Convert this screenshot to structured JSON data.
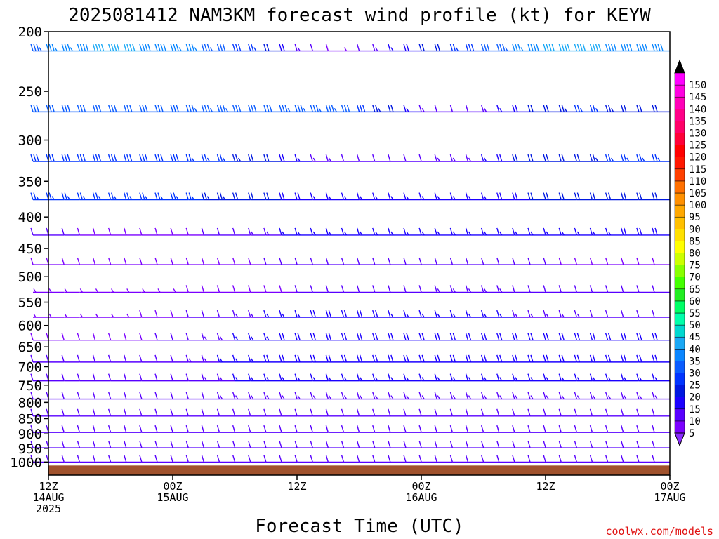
{
  "title": "2025081412 NAM3KM forecast wind profile (kt) for KEYW",
  "watermark": "coolwx.com/models",
  "chart_data": {
    "type": "wind-barb-profile",
    "xlabel": "Forecast Time (UTC)",
    "ylabel": "",
    "x_hours": [
      0,
      60
    ],
    "x_ticks": [
      {
        "h": 0,
        "lines": [
          "12Z",
          "14AUG",
          "2025"
        ]
      },
      {
        "h": 12,
        "lines": [
          "00Z",
          "15AUG"
        ]
      },
      {
        "h": 24,
        "lines": [
          "12Z"
        ]
      },
      {
        "h": 36,
        "lines": [
          "00Z",
          "16AUG"
        ]
      },
      {
        "h": 48,
        "lines": [
          "12Z"
        ]
      },
      {
        "h": 60,
        "lines": [
          "00Z",
          "17AUG"
        ]
      }
    ],
    "y_scale": "log",
    "y_range_hpa": [
      1050,
      200
    ],
    "y_ticks": [
      200,
      250,
      300,
      350,
      400,
      450,
      500,
      550,
      600,
      650,
      700,
      750,
      800,
      850,
      900,
      950,
      1000
    ],
    "colorbar": {
      "levels": [
        5,
        10,
        15,
        20,
        25,
        30,
        35,
        40,
        45,
        50,
        55,
        60,
        65,
        70,
        75,
        80,
        85,
        90,
        95,
        100,
        105,
        110,
        115,
        120,
        125,
        130,
        135,
        140,
        145,
        150
      ],
      "colors": [
        "#7b00ff",
        "#5800ff",
        "#1b00ff",
        "#0018e0",
        "#0034ff",
        "#0a5cff",
        "#0a86ff",
        "#1aa8f5",
        "#00d8d0",
        "#00ffaa",
        "#00ff66",
        "#22ee22",
        "#44ff00",
        "#88ff00",
        "#ccff00",
        "#ffff00",
        "#ffe000",
        "#ffc000",
        "#ffa800",
        "#ff9000",
        "#ff7000",
        "#ff4000",
        "#ff1800",
        "#ff0000",
        "#ff0038",
        "#ff0068",
        "#ff0088",
        "#ff00b8",
        "#ff00e0",
        "#ff00ff"
      ],
      "under_color": "#8a2bff",
      "over_color": "#000000"
    },
    "terrain_color": "#a0522d",
    "levels": [
      {
        "p": 215,
        "dir": 270,
        "spd": [
          34,
          35,
          37,
          38,
          40,
          40,
          40,
          39,
          38,
          37,
          35,
          33,
          30,
          28,
          25,
          22,
          18,
          14,
          10,
          8,
          7,
          12,
          14,
          15,
          18,
          20,
          22,
          25,
          28,
          30,
          34,
          36,
          38,
          40,
          40,
          40,
          40,
          38,
          38,
          38,
          38
        ]
      },
      {
        "p": 270,
        "dir": 270,
        "spd": [
          30,
          30,
          30,
          30,
          30,
          30,
          30,
          30,
          31,
          32,
          33,
          34,
          33,
          32,
          32,
          32,
          33,
          34,
          34,
          33,
          30,
          28,
          24,
          20,
          16,
          14,
          12,
          12,
          12,
          14,
          16,
          18,
          20,
          22,
          24,
          25,
          25,
          24,
          22,
          20,
          20
        ]
      },
      {
        "p": 325,
        "dir": 270,
        "spd": [
          28,
          28,
          28,
          28,
          28,
          28,
          28,
          28,
          28,
          28,
          27,
          26,
          25,
          24,
          22,
          20,
          18,
          16,
          14,
          13,
          12,
          12,
          12,
          12,
          12,
          12,
          13,
          13,
          14,
          16,
          18,
          20,
          20,
          20,
          20,
          22,
          24,
          25,
          25,
          25,
          25
        ]
      },
      {
        "p": 375,
        "dir": 270,
        "spd": [
          26,
          26,
          26,
          26,
          26,
          26,
          26,
          26,
          26,
          26,
          25,
          24,
          23,
          22,
          21,
          20,
          19,
          18,
          17,
          17,
          17,
          17,
          16,
          16,
          15,
          15,
          15,
          15,
          16,
          17,
          18,
          19,
          20,
          20,
          20,
          20,
          20,
          20,
          20,
          20,
          20
        ]
      },
      {
        "p": 428,
        "dir": 270,
        "spd": [
          10,
          10,
          10,
          9,
          9,
          8,
          8,
          8,
          8,
          8,
          9,
          10,
          11,
          12,
          13,
          14,
          15,
          15,
          15,
          16,
          16,
          16,
          16,
          16,
          16,
          16,
          16,
          16,
          16,
          16,
          16,
          16,
          16,
          16,
          17,
          17,
          17,
          17,
          18,
          18,
          18
        ]
      },
      {
        "p": 478,
        "dir": 270,
        "spd": [
          8,
          8,
          8,
          8,
          8,
          8,
          8,
          8,
          8,
          8,
          8,
          8,
          9,
          9,
          9,
          10,
          10,
          10,
          10,
          10,
          10,
          10,
          11,
          11,
          11,
          11,
          11,
          11,
          10,
          10,
          10,
          10,
          10,
          10,
          9,
          9,
          9,
          9,
          9,
          9,
          9
        ]
      },
      {
        "p": 530,
        "dir": 270,
        "spd": [
          6,
          6,
          6,
          6,
          6,
          7,
          7,
          7,
          7,
          7,
          8,
          8,
          8,
          9,
          9,
          9,
          9,
          10,
          10,
          10,
          11,
          11,
          11,
          12,
          12,
          12,
          13,
          13,
          13,
          13,
          13,
          12,
          12,
          11,
          11,
          11,
          10,
          10,
          10,
          10,
          10
        ]
      },
      {
        "p": 582,
        "dir": 270,
        "spd": [
          6,
          6,
          6,
          6,
          6,
          7,
          7,
          8,
          8,
          9,
          10,
          11,
          12,
          13,
          14,
          15,
          16,
          17,
          18,
          18,
          18,
          18,
          18,
          17,
          17,
          16,
          16,
          16,
          15,
          15,
          15,
          14,
          14,
          14,
          13,
          13,
          12,
          12,
          12,
          12,
          12
        ]
      },
      {
        "p": 634,
        "dir": 270,
        "spd": [
          8,
          8,
          8,
          8,
          8,
          8,
          8,
          9,
          10,
          11,
          12,
          13,
          14,
          15,
          16,
          17,
          18,
          18,
          18,
          18,
          18,
          18,
          18,
          18,
          18,
          18,
          18,
          18,
          18,
          18,
          18,
          18,
          18,
          18,
          18,
          18,
          18,
          18,
          18,
          18,
          18
        ]
      },
      {
        "p": 688,
        "dir": 270,
        "spd": [
          10,
          10,
          10,
          10,
          10,
          10,
          10,
          10,
          11,
          12,
          13,
          14,
          15,
          16,
          17,
          18,
          18,
          18,
          18,
          18,
          18,
          18,
          18,
          18,
          18,
          18,
          18,
          18,
          18,
          18,
          18,
          18,
          18,
          18,
          18,
          18,
          18,
          18,
          18,
          18,
          18
        ]
      },
      {
        "p": 738,
        "dir": 270,
        "spd": [
          10,
          10,
          10,
          10,
          10,
          10,
          10,
          10,
          10,
          11,
          12,
          13,
          14,
          15,
          16,
          17,
          17,
          17,
          17,
          17,
          17,
          17,
          17,
          17,
          17,
          17,
          17,
          17,
          17,
          17,
          17,
          17,
          17,
          17,
          17,
          17,
          17,
          17,
          17,
          17,
          17
        ]
      },
      {
        "p": 790,
        "dir": 270,
        "spd": [
          10,
          10,
          10,
          10,
          10,
          10,
          10,
          10,
          10,
          10,
          11,
          12,
          13,
          13,
          14,
          14,
          14,
          14,
          14,
          14,
          14,
          14,
          14,
          14,
          14,
          14,
          14,
          14,
          14,
          14,
          14,
          14,
          14,
          14,
          14,
          14,
          14,
          14,
          14,
          14,
          14
        ]
      },
      {
        "p": 842,
        "dir": 270,
        "spd": [
          10,
          10,
          10,
          10,
          10,
          10,
          10,
          10,
          10,
          10,
          10,
          10,
          11,
          11,
          11,
          12,
          12,
          12,
          12,
          12,
          12,
          12,
          12,
          12,
          12,
          12,
          12,
          12,
          12,
          12,
          12,
          12,
          12,
          12,
          12,
          12,
          12,
          12,
          12,
          12,
          12
        ]
      },
      {
        "p": 895,
        "dir": 270,
        "spd": [
          10,
          10,
          10,
          10,
          10,
          10,
          10,
          10,
          10,
          10,
          10,
          10,
          10,
          10,
          10,
          10,
          11,
          11,
          11,
          11,
          12,
          12,
          12,
          12,
          12,
          12,
          12,
          12,
          12,
          12,
          12,
          12,
          12,
          12,
          12,
          12,
          11,
          11,
          11,
          11,
          11
        ]
      },
      {
        "p": 948,
        "dir": 270,
        "spd": [
          10,
          10,
          10,
          10,
          10,
          10,
          10,
          10,
          10,
          10,
          10,
          10,
          10,
          10,
          10,
          10,
          10,
          10,
          10,
          10,
          10,
          10,
          10,
          10,
          10,
          10,
          10,
          10,
          10,
          10,
          10,
          10,
          10,
          10,
          10,
          10,
          10,
          10,
          10,
          10,
          10
        ]
      },
      {
        "p": 1000,
        "dir": 270,
        "spd": [
          10,
          10,
          10,
          10,
          10,
          10,
          10,
          10,
          10,
          10,
          10,
          10,
          10,
          10,
          10,
          10,
          10,
          10,
          10,
          10,
          10,
          10,
          10,
          10,
          10,
          10,
          10,
          10,
          10,
          10,
          10,
          10,
          10,
          10,
          10,
          10,
          10,
          10,
          10,
          10,
          10
        ]
      }
    ]
  }
}
